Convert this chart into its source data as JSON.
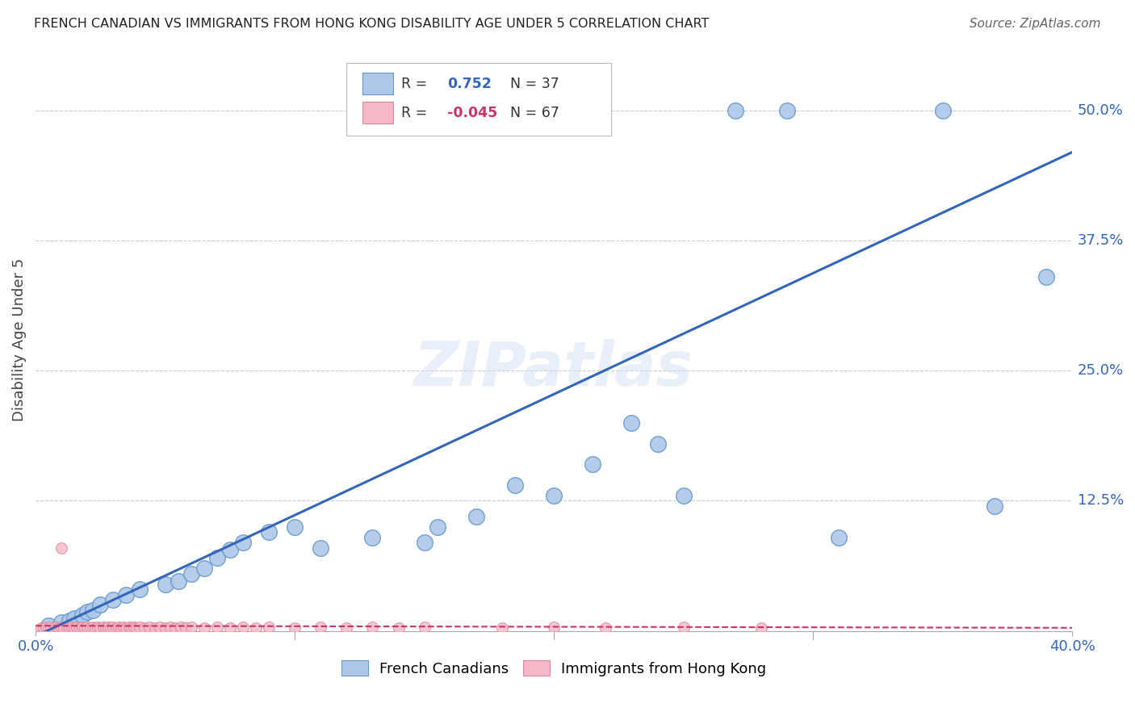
{
  "title": "FRENCH CANADIAN VS IMMIGRANTS FROM HONG KONG DISABILITY AGE UNDER 5 CORRELATION CHART",
  "source": "Source: ZipAtlas.com",
  "ylabel": "Disability Age Under 5",
  "blue_R": 0.752,
  "blue_N": 37,
  "pink_R": -0.045,
  "pink_N": 67,
  "blue_label": "French Canadians",
  "pink_label": "Immigrants from Hong Kong",
  "xlim": [
    0,
    0.4
  ],
  "ylim": [
    0,
    0.56
  ],
  "blue_scatter_x": [
    0.005,
    0.01,
    0.013,
    0.015,
    0.018,
    0.02,
    0.022,
    0.025,
    0.03,
    0.035,
    0.04,
    0.05,
    0.055,
    0.06,
    0.065,
    0.07,
    0.075,
    0.08,
    0.09,
    0.1,
    0.11,
    0.13,
    0.15,
    0.155,
    0.17,
    0.185,
    0.2,
    0.215,
    0.23,
    0.24,
    0.25,
    0.27,
    0.29,
    0.35,
    0.37,
    0.39,
    0.31
  ],
  "blue_scatter_y": [
    0.005,
    0.008,
    0.01,
    0.012,
    0.015,
    0.018,
    0.02,
    0.025,
    0.03,
    0.035,
    0.04,
    0.045,
    0.048,
    0.055,
    0.06,
    0.07,
    0.078,
    0.085,
    0.095,
    0.1,
    0.08,
    0.09,
    0.085,
    0.1,
    0.11,
    0.14,
    0.13,
    0.16,
    0.2,
    0.18,
    0.13,
    0.5,
    0.5,
    0.5,
    0.12,
    0.34,
    0.09
  ],
  "pink_scatter_x": [
    0.002,
    0.003,
    0.004,
    0.005,
    0.006,
    0.007,
    0.008,
    0.009,
    0.01,
    0.011,
    0.012,
    0.013,
    0.014,
    0.015,
    0.016,
    0.017,
    0.018,
    0.019,
    0.02,
    0.021,
    0.022,
    0.023,
    0.024,
    0.025,
    0.026,
    0.027,
    0.028,
    0.029,
    0.03,
    0.031,
    0.032,
    0.033,
    0.034,
    0.035,
    0.036,
    0.037,
    0.038,
    0.039,
    0.04,
    0.042,
    0.044,
    0.046,
    0.048,
    0.05,
    0.052,
    0.054,
    0.056,
    0.058,
    0.06,
    0.065,
    0.07,
    0.075,
    0.08,
    0.085,
    0.09,
    0.1,
    0.11,
    0.12,
    0.13,
    0.14,
    0.15,
    0.18,
    0.2,
    0.22,
    0.25,
    0.28,
    0.01
  ],
  "pink_scatter_y": [
    0.003,
    0.003,
    0.004,
    0.003,
    0.004,
    0.003,
    0.004,
    0.003,
    0.004,
    0.003,
    0.004,
    0.003,
    0.004,
    0.003,
    0.004,
    0.003,
    0.004,
    0.003,
    0.004,
    0.003,
    0.004,
    0.003,
    0.004,
    0.003,
    0.004,
    0.003,
    0.004,
    0.003,
    0.004,
    0.003,
    0.004,
    0.003,
    0.004,
    0.003,
    0.004,
    0.003,
    0.004,
    0.003,
    0.004,
    0.003,
    0.004,
    0.003,
    0.004,
    0.003,
    0.004,
    0.003,
    0.004,
    0.003,
    0.004,
    0.003,
    0.004,
    0.003,
    0.004,
    0.003,
    0.004,
    0.003,
    0.004,
    0.003,
    0.004,
    0.003,
    0.004,
    0.003,
    0.004,
    0.003,
    0.004,
    0.003,
    0.08
  ],
  "blue_trend_x0": 0.0,
  "blue_trend_y0": -0.005,
  "blue_trend_x1": 0.4,
  "blue_trend_y1": 0.46,
  "pink_trend_x0": 0.0,
  "pink_trend_y0": 0.005,
  "pink_trend_x1": 0.4,
  "pink_trend_y1": 0.003,
  "blue_color": "#adc8e8",
  "blue_edge_color": "#6699cc",
  "pink_color": "#f5b8c8",
  "pink_edge_color": "#dd8899",
  "trend_blue_color": "#3366bb",
  "trend_pink_color": "#cc3366",
  "background_color": "#ffffff",
  "grid_color": "#cccccc",
  "title_color": "#222222",
  "axis_label_color": "#444444",
  "ytick_color": "#3366bb",
  "xtick_color": "#3366bb",
  "watermark": "ZIPatlas"
}
